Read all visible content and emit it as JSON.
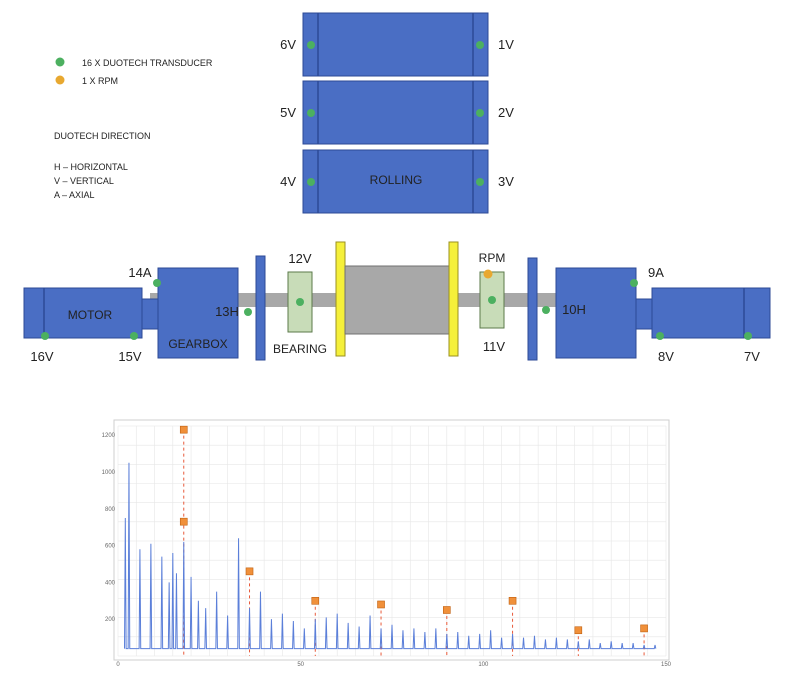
{
  "legend": {
    "transducer_label": "16 X DUOTECH TRANSDUCER",
    "rpm_label": "1 X RPM",
    "direction_title": "DUOTECH DIRECTION",
    "h_label": "H – HORIZONTAL",
    "v_label": "V – VERTICAL",
    "a_label": "A – AXIAL"
  },
  "colors": {
    "machine_blue": "#4a6ec4",
    "transducer_green": "#4cb060",
    "rpm_orange": "#e8a830",
    "shaft_grey": "#a8a8a8",
    "bearing_green": "#c8dcb8",
    "coupling_yellow": "#f5f03a",
    "spectrum_blue": "#5b7fd9",
    "harmonic_red": "#e85a3a",
    "marker_orange": "#f0903a"
  },
  "rolling": {
    "label": "ROLLING",
    "points": {
      "p6": "6V",
      "p5": "5V",
      "p4": "4V",
      "p1": "1V",
      "p2": "2V",
      "p3": "3V"
    }
  },
  "drivetrain": {
    "motor_label": "MOTOR",
    "gearbox_label": "GEARBOX",
    "bearing_label": "BEARING",
    "rpm_label": "RPM",
    "points": {
      "p14": "14A",
      "p16": "16V",
      "p15": "15V",
      "p13": "13H",
      "p12": "12V",
      "p11": "11V",
      "p10": "10H",
      "p9": "9A",
      "p8": "8V",
      "p7": "7V"
    }
  },
  "chart_data": {
    "type": "line",
    "title": "",
    "xlabel": "",
    "ylabel": "",
    "xlim": [
      0,
      150
    ],
    "ylim": [
      0,
      1250
    ],
    "x_ticks": [
      "0",
      "50",
      "100",
      "150"
    ],
    "y_ticks": [
      "200",
      "400",
      "600",
      "800",
      "1000",
      "1200"
    ],
    "series": [
      {
        "x": [
          2,
          3,
          6,
          9,
          12,
          14,
          15,
          16,
          18,
          20,
          22,
          24,
          27,
          30,
          33,
          36,
          39,
          42,
          45,
          48,
          51,
          54,
          57,
          60,
          63,
          66,
          69,
          72,
          75,
          78,
          81,
          84,
          87,
          90,
          93,
          96,
          99,
          102,
          105,
          108,
          111,
          114,
          117,
          120,
          123,
          126,
          129,
          132,
          135,
          138,
          141,
          144,
          147
        ],
        "y": [
          750,
          1050,
          580,
          610,
          540,
          400,
          560,
          450,
          620,
          430,
          300,
          260,
          350,
          220,
          640,
          260,
          350,
          200,
          230,
          190,
          150,
          200,
          210,
          230,
          180,
          160,
          220,
          150,
          170,
          140,
          150,
          130,
          150,
          120,
          130,
          110,
          120,
          140,
          100,
          120,
          100,
          110,
          90,
          100,
          90,
          80,
          90,
          70,
          80,
          70,
          70,
          60,
          60
        ]
      }
    ],
    "harmonics": [
      {
        "x": 18,
        "y": 1230
      },
      {
        "x": 18,
        "y": 730
      },
      {
        "x": 36,
        "y": 460
      },
      {
        "x": 54,
        "y": 300
      },
      {
        "x": 72,
        "y": 280
      },
      {
        "x": 90,
        "y": 250
      },
      {
        "x": 108,
        "y": 300
      },
      {
        "x": 126,
        "y": 140
      },
      {
        "x": 144,
        "y": 150
      }
    ]
  }
}
